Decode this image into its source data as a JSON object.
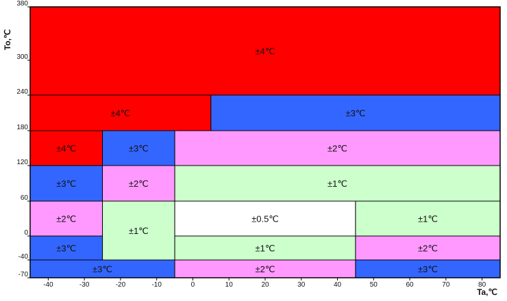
{
  "chart_data": {
    "type": "heatmap",
    "xlabel": "Ta,℃",
    "ylabel": "To,℃",
    "xlim": [
      -45,
      85
    ],
    "ylim": [
      -70,
      380
    ],
    "x_ticks": [
      -40,
      -30,
      -20,
      -10,
      0,
      10,
      20,
      30,
      40,
      50,
      60,
      70,
      80
    ],
    "y_ticks": [
      -70,
      -40,
      0,
      60,
      120,
      180,
      240,
      300,
      380
    ],
    "colors": {
      "red": "#ff0000",
      "blue": "#3366ff",
      "pink": "#ff99ff",
      "green": "#ccffcc",
      "white": "#ffffff"
    },
    "regions": [
      {
        "x": [
          -45,
          85
        ],
        "y": [
          240,
          380
        ],
        "color": "red",
        "label": "±4℃"
      },
      {
        "x": [
          -45,
          5
        ],
        "y": [
          180,
          240
        ],
        "color": "red",
        "label": "±4℃"
      },
      {
        "x": [
          5,
          85
        ],
        "y": [
          180,
          240
        ],
        "color": "blue",
        "label": "±3℃"
      },
      {
        "x": [
          -45,
          -25
        ],
        "y": [
          120,
          180
        ],
        "color": "red",
        "label": "±4℃"
      },
      {
        "x": [
          -25,
          -5
        ],
        "y": [
          120,
          180
        ],
        "color": "blue",
        "label": "±3℃"
      },
      {
        "x": [
          -5,
          85
        ],
        "y": [
          120,
          180
        ],
        "color": "pink",
        "label": "±2℃"
      },
      {
        "x": [
          -45,
          -25
        ],
        "y": [
          60,
          120
        ],
        "color": "blue",
        "label": "±3℃"
      },
      {
        "x": [
          -25,
          -5
        ],
        "y": [
          60,
          120
        ],
        "color": "pink",
        "label": "±2℃"
      },
      {
        "x": [
          -5,
          85
        ],
        "y": [
          60,
          120
        ],
        "color": "green",
        "label": "±1℃"
      },
      {
        "x": [
          -45,
          -25
        ],
        "y": [
          0,
          60
        ],
        "color": "pink",
        "label": "±2℃"
      },
      {
        "x": [
          -25,
          -5
        ],
        "y": [
          -40,
          60
        ],
        "color": "green",
        "label": "±1℃"
      },
      {
        "x": [
          -5,
          45
        ],
        "y": [
          0,
          60
        ],
        "color": "white",
        "label": "±0.5℃"
      },
      {
        "x": [
          45,
          85
        ],
        "y": [
          0,
          60
        ],
        "color": "green",
        "label": "±1℃"
      },
      {
        "x": [
          -45,
          -25
        ],
        "y": [
          -40,
          0
        ],
        "color": "blue",
        "label": "±3℃"
      },
      {
        "x": [
          -5,
          45
        ],
        "y": [
          -40,
          0
        ],
        "color": "green",
        "label": "±1℃"
      },
      {
        "x": [
          45,
          85
        ],
        "y": [
          -40,
          0
        ],
        "color": "pink",
        "label": "±2℃"
      },
      {
        "x": [
          -45,
          -5
        ],
        "y": [
          -70,
          -40
        ],
        "color": "blue",
        "label": "±3℃"
      },
      {
        "x": [
          -5,
          45
        ],
        "y": [
          -70,
          -40
        ],
        "color": "pink",
        "label": "±2℃"
      },
      {
        "x": [
          45,
          85
        ],
        "y": [
          -70,
          -40
        ],
        "color": "blue",
        "label": "±3℃"
      }
    ]
  }
}
